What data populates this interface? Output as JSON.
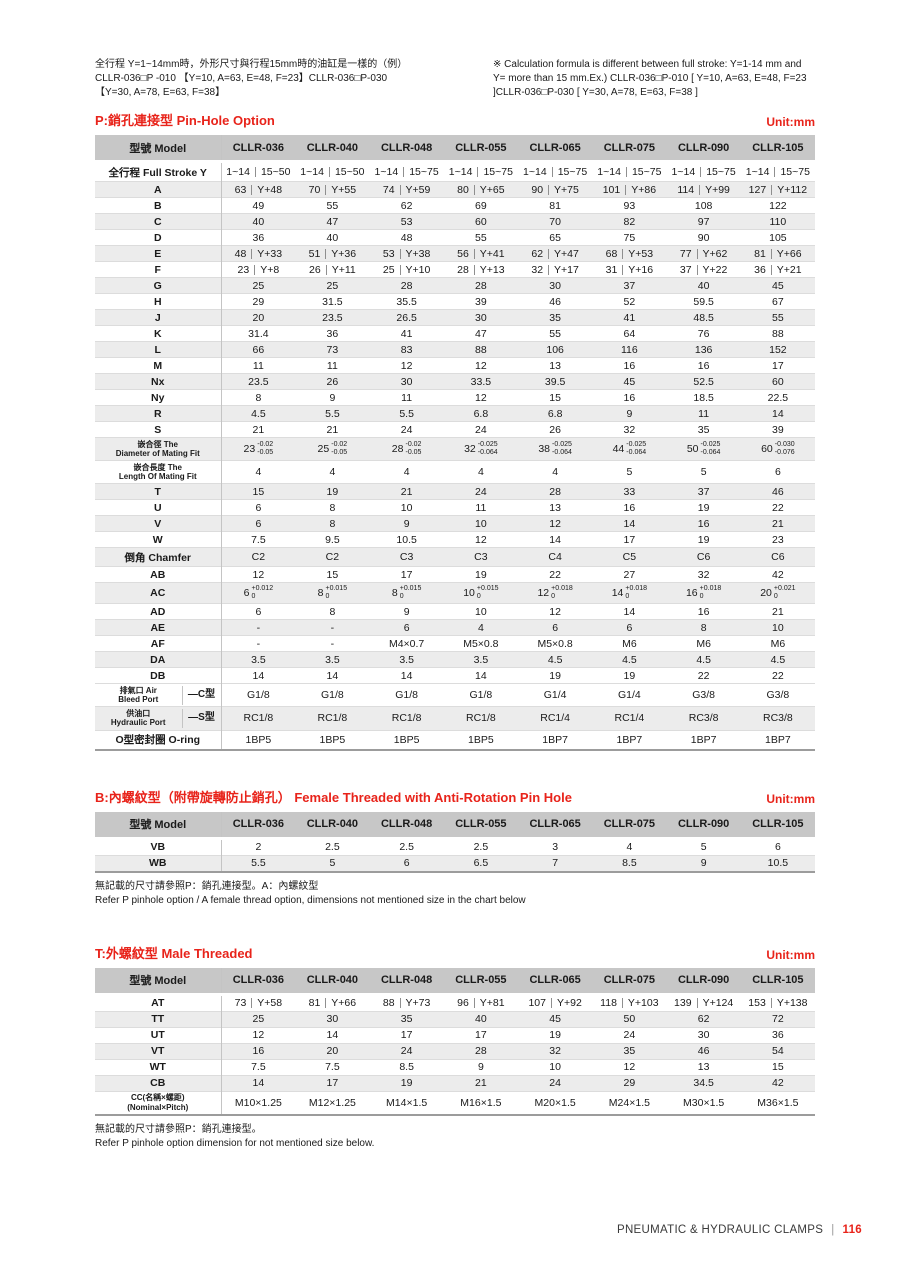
{
  "colors": {
    "accent_red": "#e8231a",
    "header_grey": "#c7c7c7",
    "row_grey": "#ececec"
  },
  "page": {
    "top_note_zh": [
      "全行程 Y=1~14mm時，外形尺寸與行程15mm時的油缸是一樣的（例）",
      "CLLR-036□P -010 【Y=10, A=63, E=48, F=23】CLLR-036□P-030",
      "【Y=30, A=78, E=63, F=38】"
    ],
    "top_note_en": [
      "※ Calculation formula is different between full stroke: Y=1-14 mm and",
      "Y= more than 15 mm.Ex.) CLLR-036□P-010 [ Y=10, A=63, E=48, F=23",
      "]CLLR-036□P-030 [ Y=30, A=78, E=63, F=38 ]"
    ],
    "footer": {
      "text": "PNEUMATIC & HYDRAULIC CLAMPS",
      "separator": "|",
      "page_number": "116"
    }
  },
  "sections": [
    {
      "id": "p",
      "title_zh": "P:銷孔連接型",
      "title_en": "Pin-Hole Option",
      "unit": "Unit:mm",
      "model_header": "型號 Model",
      "models": [
        "CLLR-036",
        "CLLR-040",
        "CLLR-048",
        "CLLR-055",
        "CLLR-065",
        "CLLR-075",
        "CLLR-090",
        "CLLR-105"
      ],
      "rows": [
        {
          "label": "全行程 Full Stroke Y",
          "values": [
            "1~14|15~50",
            "1~14|15~50",
            "1~14|15~75",
            "1~14|15~75",
            "1~14|15~75",
            "1~14|15~75",
            "1~14|15~75",
            "1~14|15~75"
          ]
        },
        {
          "label": "A",
          "values": [
            "63|Y+48",
            "70|Y+55",
            "74|Y+59",
            "80|Y+65",
            "90|Y+75",
            "101|Y+86",
            "114|Y+99",
            "127|Y+112"
          ]
        },
        {
          "label": "B",
          "values": [
            "49",
            "55",
            "62",
            "69",
            "81",
            "93",
            "108",
            "122"
          ]
        },
        {
          "label": "C",
          "values": [
            "40",
            "47",
            "53",
            "60",
            "70",
            "82",
            "97",
            "110"
          ]
        },
        {
          "label": "D",
          "values": [
            "36",
            "40",
            "48",
            "55",
            "65",
            "75",
            "90",
            "105"
          ]
        },
        {
          "label": "E",
          "values": [
            "48|Y+33",
            "51|Y+36",
            "53|Y+38",
            "56|Y+41",
            "62|Y+47",
            "68|Y+53",
            "77|Y+62",
            "81|Y+66"
          ]
        },
        {
          "label": "F",
          "values": [
            "23|Y+8",
            "26|Y+11",
            "25|Y+10",
            "28|Y+13",
            "32|Y+17",
            "31|Y+16",
            "37|Y+22",
            "36|Y+21"
          ]
        },
        {
          "label": "G",
          "values": [
            "25",
            "25",
            "28",
            "28",
            "30",
            "37",
            "40",
            "45"
          ]
        },
        {
          "label": "H",
          "values": [
            "29",
            "31.5",
            "35.5",
            "39",
            "46",
            "52",
            "59.5",
            "67"
          ]
        },
        {
          "label": "J",
          "values": [
            "20",
            "23.5",
            "26.5",
            "30",
            "35",
            "41",
            "48.5",
            "55"
          ]
        },
        {
          "label": "K",
          "values": [
            "31.4",
            "36",
            "41",
            "47",
            "55",
            "64",
            "76",
            "88"
          ]
        },
        {
          "label": "L",
          "values": [
            "66",
            "73",
            "83",
            "88",
            "106",
            "116",
            "136",
            "152"
          ]
        },
        {
          "label": "M",
          "values": [
            "11",
            "11",
            "12",
            "12",
            "13",
            "16",
            "16",
            "17"
          ]
        },
        {
          "label": "Nx",
          "values": [
            "23.5",
            "26",
            "30",
            "33.5",
            "39.5",
            "45",
            "52.5",
            "60"
          ]
        },
        {
          "label": "Ny",
          "values": [
            "8",
            "9",
            "11",
            "12",
            "15",
            "16",
            "18.5",
            "22.5"
          ]
        },
        {
          "label": "R",
          "values": [
            "4.5",
            "5.5",
            "5.5",
            "6.8",
            "6.8",
            "9",
            "11",
            "14"
          ]
        },
        {
          "label": "S",
          "values": [
            "21",
            "21",
            "24",
            "24",
            "26",
            "32",
            "35",
            "39"
          ]
        },
        {
          "label": "嵌合徑 The",
          "label_en": "Diameter of Mating Fit",
          "values": [
            {
              "v": "23",
              "hi": "-0.02",
              "lo": "-0.05"
            },
            {
              "v": "25",
              "hi": "-0.02",
              "lo": "-0.05"
            },
            {
              "v": "28",
              "hi": "-0.02",
              "lo": "-0.05"
            },
            {
              "v": "32",
              "hi": "-0.025",
              "lo": "-0.064"
            },
            {
              "v": "38",
              "hi": "-0.025",
              "lo": "-0.064"
            },
            {
              "v": "44",
              "hi": "-0.025",
              "lo": "-0.064"
            },
            {
              "v": "50",
              "hi": "-0.025",
              "lo": "-0.064"
            },
            {
              "v": "60",
              "hi": "-0.030",
              "lo": "-0.076"
            }
          ]
        },
        {
          "label": "嵌合長度 The",
          "label_en": "Length Of Mating Fit",
          "values": [
            "4",
            "4",
            "4",
            "4",
            "4",
            "5",
            "5",
            "6"
          ]
        },
        {
          "label": "T",
          "values": [
            "15",
            "19",
            "21",
            "24",
            "28",
            "33",
            "37",
            "46"
          ]
        },
        {
          "label": "U",
          "values": [
            "6",
            "8",
            "10",
            "11",
            "13",
            "16",
            "19",
            "22"
          ]
        },
        {
          "label": "V",
          "values": [
            "6",
            "8",
            "9",
            "10",
            "12",
            "14",
            "16",
            "21"
          ]
        },
        {
          "label": "W",
          "values": [
            "7.5",
            "9.5",
            "10.5",
            "12",
            "14",
            "17",
            "19",
            "23"
          ]
        },
        {
          "label": "倒角 Chamfer",
          "values": [
            "C2",
            "C2",
            "C3",
            "C3",
            "C4",
            "C5",
            "C6",
            "C6"
          ]
        },
        {
          "label": "AB",
          "values": [
            "12",
            "15",
            "17",
            "19",
            "22",
            "27",
            "32",
            "42"
          ]
        },
        {
          "label": "AC",
          "values": [
            {
              "v": "6",
              "hi": "+0.012",
              "lo": "0"
            },
            {
              "v": "8",
              "hi": "+0.015",
              "lo": "0"
            },
            {
              "v": "8",
              "hi": "+0.015",
              "lo": "0"
            },
            {
              "v": "10",
              "hi": "+0.015",
              "lo": "0"
            },
            {
              "v": "12",
              "hi": "+0.018",
              "lo": "0"
            },
            {
              "v": "14",
              "hi": "+0.018",
              "lo": "0"
            },
            {
              "v": "16",
              "hi": "+0.018",
              "lo": "0"
            },
            {
              "v": "20",
              "hi": "+0.021",
              "lo": "0"
            }
          ]
        },
        {
          "label": "AD",
          "values": [
            "6",
            "8",
            "9",
            "10",
            "12",
            "14",
            "16",
            "21"
          ]
        },
        {
          "label": "AE",
          "values": [
            "-",
            "-",
            "6",
            "4",
            "6",
            "6",
            "8",
            "10"
          ]
        },
        {
          "label": "AF",
          "values": [
            "-",
            "-",
            "M4×0.7",
            "M5×0.8",
            "M5×0.8",
            "M6",
            "M6",
            "M6"
          ]
        },
        {
          "label": "DA",
          "values": [
            "3.5",
            "3.5",
            "3.5",
            "3.5",
            "4.5",
            "4.5",
            "4.5",
            "4.5"
          ]
        },
        {
          "label": "DB",
          "values": [
            "14",
            "14",
            "14",
            "14",
            "19",
            "19",
            "22",
            "22"
          ]
        },
        {
          "label": "排氣口 Air",
          "label_en": "Bleed Port",
          "sub": "—C型",
          "values": [
            "G1/8",
            "G1/8",
            "G1/8",
            "G1/8",
            "G1/4",
            "G1/4",
            "G3/8",
            "G3/8"
          ]
        },
        {
          "label": "供油口",
          "label_en": "Hydraulic Port",
          "sub": "—S型",
          "values": [
            "RC1/8",
            "RC1/8",
            "RC1/8",
            "RC1/8",
            "RC1/4",
            "RC1/4",
            "RC3/8",
            "RC3/8"
          ]
        },
        {
          "label": "O型密封圈 O-ring",
          "values": [
            "1BP5",
            "1BP5",
            "1BP5",
            "1BP5",
            "1BP7",
            "1BP7",
            "1BP7",
            "1BP7"
          ]
        }
      ],
      "notes": []
    },
    {
      "id": "b",
      "title_zh": "B:內螺紋型（附帶旋轉防止銷孔）",
      "title_en": "Female Threaded with Anti-Rotation Pin Hole",
      "unit": "Unit:mm",
      "model_header": "型號 Model",
      "models": [
        "CLLR-036",
        "CLLR-040",
        "CLLR-048",
        "CLLR-055",
        "CLLR-065",
        "CLLR-075",
        "CLLR-090",
        "CLLR-105"
      ],
      "rows": [
        {
          "label": "VB",
          "values": [
            "2",
            "2.5",
            "2.5",
            "2.5",
            "3",
            "4",
            "5",
            "6"
          ]
        },
        {
          "label": "WB",
          "values": [
            "5.5",
            "5",
            "6",
            "6.5",
            "7",
            "8.5",
            "9",
            "10.5"
          ]
        }
      ],
      "notes": [
        "無記載的尺寸請參照P：銷孔連接型。A：內螺紋型",
        "Refer P pinhole option / A female thread option, dimensions not mentioned size in the chart below"
      ]
    },
    {
      "id": "t",
      "title_zh": "T:外螺紋型",
      "title_en": "Male Threaded",
      "unit": "Unit:mm",
      "model_header": "型號 Model",
      "models": [
        "CLLR-036",
        "CLLR-040",
        "CLLR-048",
        "CLLR-055",
        "CLLR-065",
        "CLLR-075",
        "CLLR-090",
        "CLLR-105"
      ],
      "rows": [
        {
          "label": "AT",
          "values": [
            "73|Y+58",
            "81|Y+66",
            "88|Y+73",
            "96|Y+81",
            "107|Y+92",
            "118|Y+103",
            "139|Y+124",
            "153|Y+138"
          ]
        },
        {
          "label": "TT",
          "values": [
            "25",
            "30",
            "35",
            "40",
            "45",
            "50",
            "62",
            "72"
          ]
        },
        {
          "label": "UT",
          "values": [
            "12",
            "14",
            "17",
            "17",
            "19",
            "24",
            "30",
            "36"
          ]
        },
        {
          "label": "VT",
          "values": [
            "16",
            "20",
            "24",
            "28",
            "32",
            "35",
            "46",
            "54"
          ]
        },
        {
          "label": "WT",
          "values": [
            "7.5",
            "7.5",
            "8.5",
            "9",
            "10",
            "12",
            "13",
            "15"
          ]
        },
        {
          "label": "CB",
          "values": [
            "14",
            "17",
            "19",
            "21",
            "24",
            "29",
            "34.5",
            "42"
          ]
        },
        {
          "label": "CC(名稱×螺距)",
          "label_en": "(Nominal×Pitch)",
          "values": [
            "M10×1.25",
            "M12×1.25",
            "M14×1.5",
            "M16×1.5",
            "M20×1.5",
            "M24×1.5",
            "M30×1.5",
            "M36×1.5"
          ]
        }
      ],
      "notes": [
        "無記載的尺寸請參照P：銷孔連接型。",
        "Refer P pinhole option dimension for not mentioned size below."
      ]
    }
  ]
}
